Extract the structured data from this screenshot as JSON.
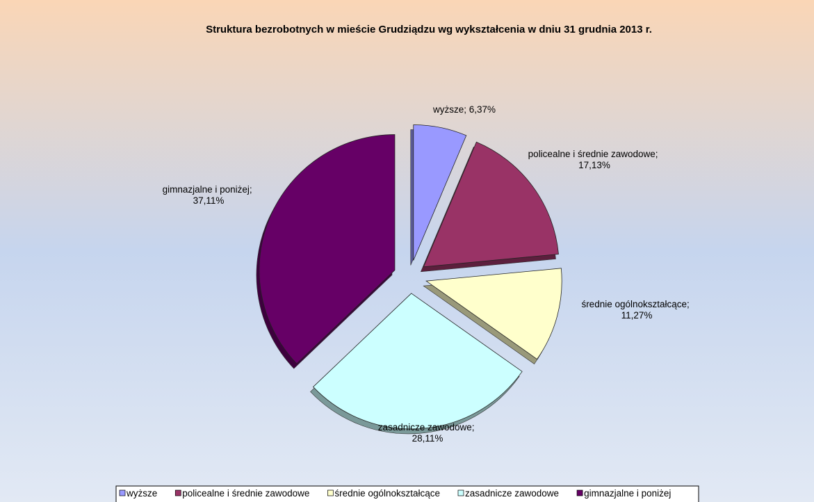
{
  "chart_data": {
    "type": "pie",
    "title": "Struktura bezrobotnych w mieście Grudziądzu wg wykształcenia w dniu 31 grudnia 2013 r.",
    "categories": [
      "wyższe",
      "policealne i średnie zawodowe",
      "średnie ogólnokształcące",
      "zasadnicze zawodowe",
      "gimnazjalne i poniżej"
    ],
    "values": [
      6.37,
      17.13,
      11.27,
      28.11,
      37.11
    ],
    "value_labels": [
      "6,37%",
      "17,13%",
      "11,27%",
      "28,11%",
      "37,11%"
    ],
    "label_separator": "; ",
    "colors": [
      "#9999ff",
      "#993366",
      "#ffffcc",
      "#ccffff",
      "#660066"
    ],
    "legend": "bottom"
  }
}
